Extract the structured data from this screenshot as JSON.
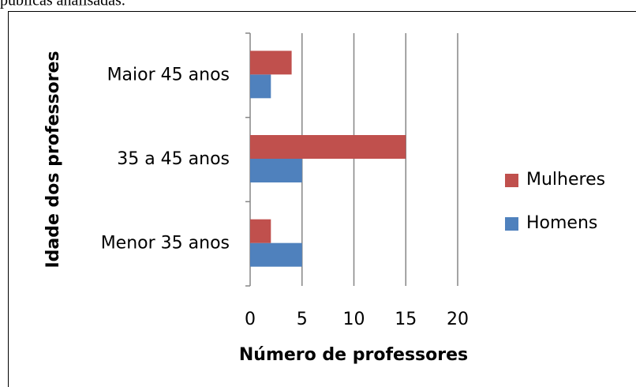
{
  "caption": "públicas analisadas.",
  "chart_data": {
    "type": "barh",
    "categories": [
      "Menor 35 anos",
      "35 a 45 anos",
      "Maior 45 anos"
    ],
    "series": [
      {
        "name": "Homens",
        "color": "#4f81bd",
        "values": [
          5,
          5,
          2
        ]
      },
      {
        "name": "Mulheres",
        "color": "#c0504d",
        "values": [
          2,
          15,
          4
        ]
      }
    ],
    "xlabel": "Número de professores",
    "ylabel": "Idade dos professores",
    "xlim": [
      0,
      20
    ],
    "xticks": [
      0,
      5,
      10,
      15,
      20
    ],
    "grid": true,
    "legend": "right"
  }
}
